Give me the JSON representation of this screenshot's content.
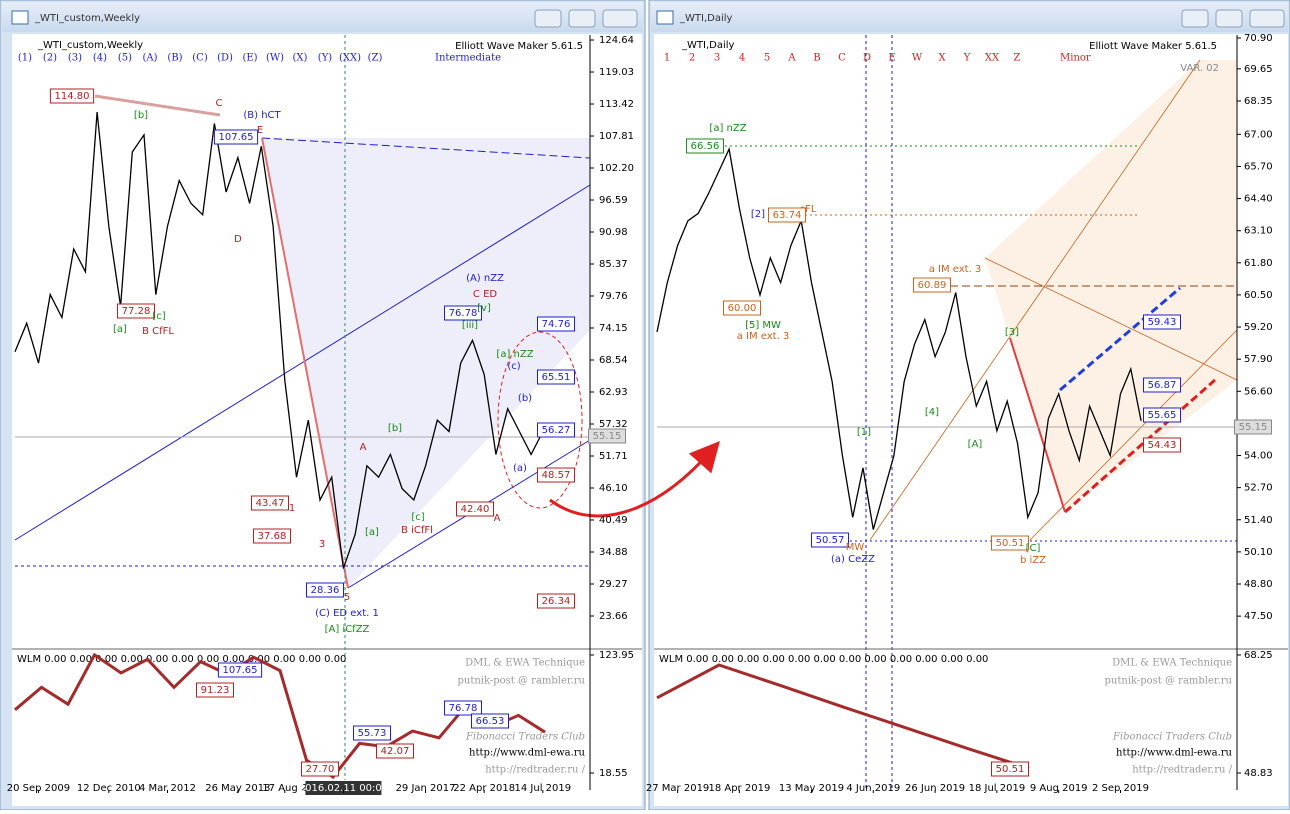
{
  "chart_data": [
    {
      "type": "line",
      "window_title": "_WTI_custom,Weekly",
      "symbol_label": "_WTI_custom,Weekly",
      "version": "Elliott Wave Maker 5.61.5",
      "wave_labels": [
        "(1)",
        "(2)",
        "(3)",
        "(4)",
        "(5)",
        "(A)",
        "(B)",
        "(C)",
        "(D)",
        "(E)",
        "(W)",
        "(X)",
        "(Y)",
        "(XX)",
        "(Z)"
      ],
      "degree": "Intermediate",
      "categories": [
        null,
        null,
        "20 Sep 2009",
        null,
        null,
        null,
        null,
        null,
        "12 Dec 2010",
        null,
        null,
        null,
        null,
        "4 Mar 2012",
        null,
        null,
        null,
        null,
        null,
        "26 May 2013",
        null,
        null,
        null,
        "17 Aug 2",
        null,
        null,
        null,
        null,
        "2016.02.11 00:00",
        null,
        null,
        null,
        null,
        null,
        null,
        "29 Jan 2017",
        null,
        null,
        null,
        null,
        "22 Apr 2018",
        null,
        null,
        null,
        null,
        "14 Jul 2019"
      ],
      "series": [
        {
          "color": "#000000",
          "values": [
            70,
            75,
            68,
            80,
            76,
            88,
            84,
            112,
            92,
            78,
            105,
            108,
            80,
            92,
            100,
            96,
            94,
            110,
            98,
            104,
            96,
            106,
            92,
            65,
            48,
            58,
            44,
            48,
            32,
            38,
            50,
            48,
            52,
            46,
            44,
            50,
            58,
            56,
            68,
            72,
            66,
            52,
            60,
            56,
            52,
            56
          ]
        }
      ],
      "ylim": [
        18.05,
        125.52
      ],
      "yticks": [
        124.64,
        119.03,
        113.42,
        107.81,
        {
          "value": 102.2,
          "label": "102.20"
        },
        96.59,
        90.98,
        85.37,
        79.76,
        74.15,
        68.54,
        62.93,
        57.32,
        51.71,
        {
          "value": 46.1,
          "label": "46.10"
        },
        40.49,
        34.88,
        29.27,
        23.66
      ],
      "annotations": [
        "114.80",
        "[b]",
        "C",
        "(B) hCT",
        "E",
        "107.65",
        "D",
        "77.28",
        "[c]",
        "[a]",
        "B CfFL",
        "(A) nZZ",
        "C ED",
        "76.78",
        "74.76",
        "[a] nZZ",
        "65.51",
        "56.27",
        "48.57",
        "43.47",
        "42.40",
        "A",
        "37.68",
        "3",
        "28.36",
        "5",
        "26.34",
        "(C) ED ext. 1",
        "[A] iCfZZ",
        "B iCfFl",
        "A",
        "1",
        "[b]",
        "[c]",
        "[a]",
        "[v]",
        "[iii]",
        "(c)",
        "(b)",
        "(a)",
        "55.15"
      ],
      "indicator": {
        "label": "WLM 0.00 0.00 0.00 0.00 0.00 0.00 0.00 0.00 0.00 0.00 0.00 0.00",
        "ylim": [
          128.42,
          3.37
        ],
        "yticks": [
          123.95,
          18.55
        ],
        "series": [
          {
            "color": "#a52a2a",
            "values": [
              75,
              95,
              80,
              124,
              108,
              120,
              95,
              118,
              107,
              122,
              110,
              30,
              15,
              45,
              42,
              56,
              50,
              78,
              60,
              70,
              55
            ]
          }
        ],
        "tags": [
          "107.65",
          "91.23",
          "55.73",
          "42.07",
          "76.78",
          "66.53",
          "27.70"
        ],
        "credits": [
          "DML & EWA Technique",
          "putnik-post @ rambler.ru",
          "Fibonacci Traders Club",
          "http://www.dml-ewa.ru",
          "http://redtrader.ru /"
        ]
      }
    },
    {
      "type": "line",
      "window_title": "_WTI,Daily",
      "symbol_label": "_WTI,Daily",
      "version": "Elliott Wave Maker 5.61.5",
      "variant": "VAR. 02",
      "wave_labels": [
        "1",
        "2",
        "3",
        "4",
        "5",
        "A",
        "B",
        "C",
        "D",
        "E",
        "W",
        "X",
        "Y",
        "XX",
        "Z"
      ],
      "degree": "Minor",
      "categories": [
        null,
        null,
        "27 Mar 2019",
        null,
        null,
        null,
        null,
        null,
        "18 Apr 2019",
        null,
        null,
        null,
        null,
        null,
        null,
        "13 May 2019",
        null,
        null,
        null,
        null,
        null,
        "4 Jun 2019",
        null,
        null,
        null,
        null,
        null,
        "26 Jun 2019",
        null,
        null,
        null,
        null,
        null,
        "18 Jul 2019",
        null,
        null,
        null,
        null,
        null,
        "9 Aug 2019",
        null,
        null,
        null,
        null,
        null,
        "2 Sep 2019",
        null,
        null
      ],
      "series": [
        {
          "color": "#000000",
          "values": [
            59,
            61,
            62.5,
            63.5,
            63.8,
            64.6,
            65.5,
            66.4,
            64,
            62,
            60.5,
            62,
            61,
            62.5,
            63.5,
            61,
            59,
            57,
            54,
            51.5,
            53.5,
            51,
            52.5,
            54,
            57,
            58.5,
            59.5,
            58,
            59,
            60.6,
            58,
            56,
            57,
            55,
            56.2,
            54.5,
            51.5,
            52.5,
            55.5,
            56.5,
            55,
            53.8,
            56,
            55,
            54,
            56.5,
            57.5,
            55.4
          ]
        }
      ],
      "ylim": [
        46.21,
        71.02
      ],
      "yticks": [
        {
          "value": 70.9,
          "label": "70.90"
        },
        69.65,
        68.35,
        {
          "value": 67,
          "label": "67.00"
        },
        {
          "value": 65.7,
          "label": "65.70"
        },
        {
          "value": 64.4,
          "label": "64.40"
        },
        {
          "value": 63.1,
          "label": "63.10"
        },
        {
          "value": 61.8,
          "label": "61.80"
        },
        {
          "value": 60.5,
          "label": "60.50"
        },
        {
          "value": 59.2,
          "label": "59.20"
        },
        {
          "value": 57.9,
          "label": "57.90"
        },
        {
          "value": 56.6,
          "label": "56.60"
        },
        {
          "value": 55.3,
          "label": "55.30"
        },
        {
          "value": 54,
          "label": "54.00"
        },
        {
          "value": 52.7,
          "label": "52.70"
        },
        {
          "value": 51.4,
          "label": "51.40"
        },
        {
          "value": 50.1,
          "label": "50.10"
        },
        {
          "value": 48.8,
          "label": "48.80"
        },
        {
          "value": 47.5,
          "label": "47.50"
        }
      ],
      "annotations": [
        "[a] nZZ",
        "66.56",
        "cFL",
        "63.74",
        "[2]",
        "60.00",
        "[5] MW",
        "a IM ext. 3",
        "a IM ext. 3",
        "60.89",
        "59.43",
        "56.87",
        "55.65",
        "54.43",
        "55.15",
        "50.57",
        "(a) CeZZ",
        "MW",
        "50.51",
        "b iZZ",
        "[C]",
        "[4]",
        "[A]",
        "[1]",
        "[3]"
      ],
      "indicator": {
        "label": "WLM 0.00 0.00 0.00 0.00 0.00 0.00 0.00 0.00 0.00 0.00 0.00 0.00",
        "ylim": [
          69.07,
          46.03
        ],
        "yticks": [
          68.25,
          48.83
        ],
        "series": [
          {
            "color": "#a52a2a",
            "values": [
              61.2,
              66.6,
              63.2,
              59.7,
              56.3,
              52.9,
              49.6
            ]
          }
        ],
        "tags": [
          "50.51"
        ],
        "credits": [
          "DML & EWA Technique",
          "putnik-post @ rambler.ru",
          "Fibonacci Traders Club",
          "http://www.dml-ewa.ru",
          "http://redtrader.ru /"
        ]
      }
    }
  ]
}
